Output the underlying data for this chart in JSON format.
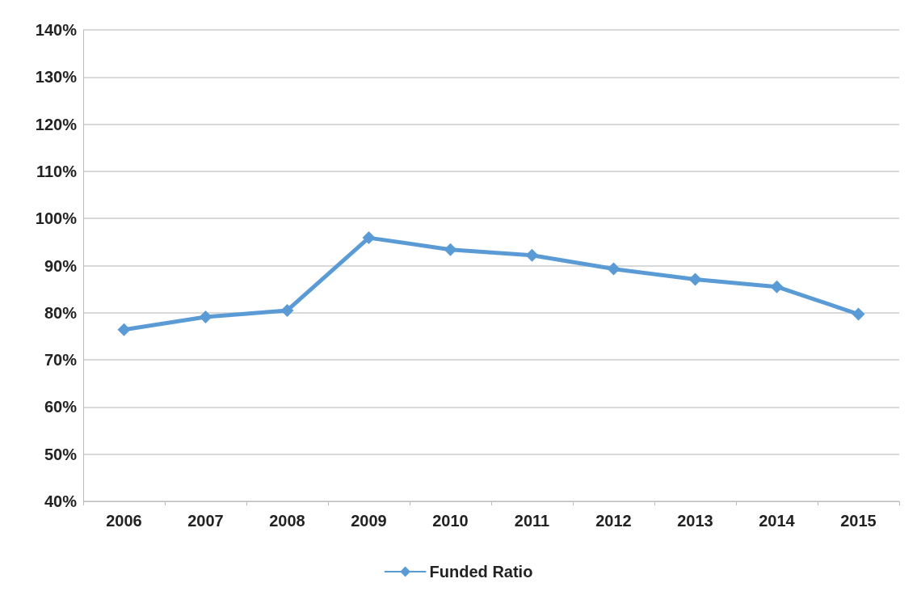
{
  "chart_data": {
    "type": "line",
    "categories": [
      "2006",
      "2007",
      "2008",
      "2009",
      "2010",
      "2011",
      "2012",
      "2013",
      "2014",
      "2015"
    ],
    "series": [
      {
        "name": "Funded Ratio",
        "color": "#5b9bd5",
        "values": [
          76.4,
          79.1,
          80.5,
          95.9,
          93.4,
          92.2,
          89.3,
          87.1,
          85.5,
          79.7
        ]
      }
    ],
    "ylim": [
      40,
      140
    ],
    "yticks": [
      {
        "value": 40,
        "label": "40%"
      },
      {
        "value": 50,
        "label": "50%"
      },
      {
        "value": 60,
        "label": "60%"
      },
      {
        "value": 70,
        "label": "70%"
      },
      {
        "value": 80,
        "label": "80%"
      },
      {
        "value": 90,
        "label": "90%"
      },
      {
        "value": 100,
        "label": "100%"
      },
      {
        "value": 110,
        "label": "110%"
      },
      {
        "value": 120,
        "label": "120%"
      },
      {
        "value": 130,
        "label": "130%"
      },
      {
        "value": 140,
        "label": "140%"
      }
    ],
    "grid": "y",
    "legend": "bottom",
    "marker": "diamond",
    "line_style": "solid"
  }
}
